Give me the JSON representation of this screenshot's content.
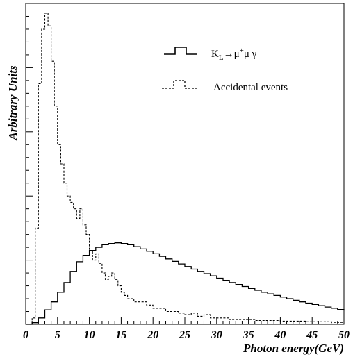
{
  "chart_data": {
    "type": "line",
    "step": true,
    "xlabel": "Photon energy(GeV)",
    "ylabel": "Arbitrary Units",
    "xlim": [
      0,
      50
    ],
    "ylim": [
      0,
      1.0
    ],
    "x_ticks": [
      "0",
      "5",
      "10",
      "15",
      "20",
      "25",
      "30",
      "35",
      "40",
      "45",
      "50"
    ],
    "y_ticks_labeled": false,
    "grid": false,
    "legend_position": "top-right",
    "bin_width": 0.5,
    "series": [
      {
        "name_parts": [
          "K",
          "L",
          "→μ",
          "+",
          "μ",
          "-",
          "γ"
        ],
        "line_style": "solid",
        "color": "#000000",
        "x": [
          0,
          1,
          2,
          3,
          4,
          5,
          6,
          7,
          8,
          9,
          10,
          11,
          12,
          13,
          14,
          15,
          16,
          17,
          18,
          19,
          20,
          21,
          22,
          23,
          24,
          25,
          26,
          27,
          28,
          29,
          30,
          31,
          32,
          33,
          34,
          35,
          36,
          37,
          38,
          39,
          40,
          41,
          42,
          43,
          44,
          45,
          46,
          47,
          48,
          49,
          50
        ],
        "y": [
          0.0,
          0.005,
          0.02,
          0.045,
          0.07,
          0.1,
          0.13,
          0.165,
          0.195,
          0.215,
          0.23,
          0.24,
          0.248,
          0.252,
          0.254,
          0.252,
          0.248,
          0.242,
          0.235,
          0.228,
          0.22,
          0.212,
          0.204,
          0.196,
          0.188,
          0.18,
          0.172,
          0.165,
          0.158,
          0.151,
          0.144,
          0.137,
          0.13,
          0.124,
          0.118,
          0.112,
          0.106,
          0.1,
          0.095,
          0.09,
          0.085,
          0.08,
          0.075,
          0.07,
          0.066,
          0.062,
          0.058,
          0.054,
          0.05,
          0.046,
          0.043
        ]
      },
      {
        "name": "Accidental events",
        "line_style": "dashed",
        "color": "#000000",
        "x": [
          0,
          0.5,
          1,
          1.5,
          2,
          2.5,
          3,
          3.5,
          4,
          4.5,
          5,
          5.5,
          6,
          6.5,
          7,
          7.5,
          8,
          8.5,
          9,
          9.5,
          10,
          10.5,
          11,
          11.5,
          12,
          12.5,
          13,
          13.5,
          14,
          14.5,
          15,
          15.5,
          16,
          17,
          18,
          19,
          20,
          21,
          22,
          23,
          24,
          25,
          26,
          27,
          28,
          29,
          30,
          32,
          34,
          36,
          38,
          40,
          42,
          44,
          46,
          48,
          50
        ],
        "y": [
          0.0,
          0.0,
          0.02,
          0.3,
          0.75,
          0.92,
          0.97,
          0.93,
          0.82,
          0.68,
          0.56,
          0.5,
          0.44,
          0.4,
          0.38,
          0.36,
          0.33,
          0.36,
          0.31,
          0.28,
          0.23,
          0.2,
          0.22,
          0.19,
          0.16,
          0.14,
          0.15,
          0.16,
          0.14,
          0.12,
          0.1,
          0.09,
          0.08,
          0.07,
          0.07,
          0.06,
          0.05,
          0.05,
          0.04,
          0.04,
          0.035,
          0.03,
          0.035,
          0.025,
          0.03,
          0.02,
          0.02,
          0.015,
          0.015,
          0.012,
          0.012,
          0.01,
          0.01,
          0.008,
          0.008,
          0.006,
          0.006
        ]
      }
    ]
  }
}
